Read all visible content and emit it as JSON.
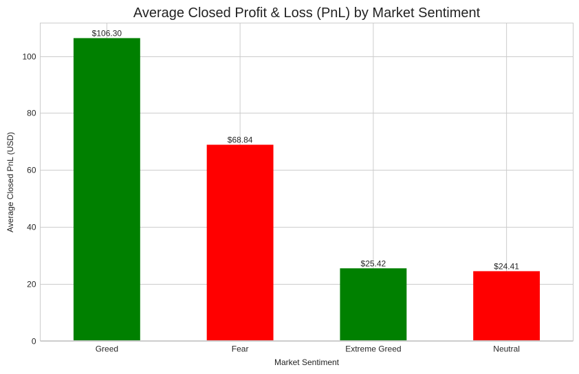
{
  "colors": {
    "positive": "#008000",
    "negative": "#ff0000",
    "grid": "#cccccc",
    "axis": "#cccccc"
  },
  "chart_data": {
    "type": "bar",
    "title": "Average Closed Profit & Loss (PnL) by Market Sentiment",
    "xlabel": "Market Sentiment",
    "ylabel": "Average Closed PnL (USD)",
    "categories": [
      "Greed",
      "Fear",
      "Extreme Greed",
      "Neutral"
    ],
    "values": [
      106.3,
      68.84,
      25.42,
      24.41
    ],
    "data_labels": [
      "$106.30",
      "$68.84",
      "$25.42",
      "$24.41"
    ],
    "bar_colors": [
      "#008000",
      "#ff0000",
      "#008000",
      "#ff0000"
    ],
    "yticks": [
      0,
      20,
      40,
      60,
      80,
      100
    ],
    "ylim": [
      0,
      111.6
    ],
    "grid": true,
    "legend": null
  }
}
